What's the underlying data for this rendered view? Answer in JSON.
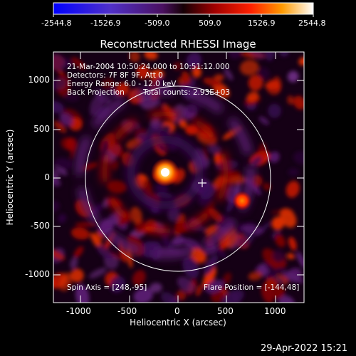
{
  "colorbar": {
    "ticks": [
      "-2544.8",
      "-1526.9",
      "-509.0",
      "509.0",
      "1526.9",
      "2544.8"
    ]
  },
  "title": "Reconstructed RHESSI Image",
  "annotations": {
    "time_range": "21-Mar-2004 10:50:24.000 to 10:51:12.000",
    "detectors": "Detectors: 7F 8F 9F, Att 0",
    "energy": "Energy Range: 6.0 - 12.0 keV",
    "method": "Back Projection",
    "counts": "Total counts: 2.93E+03",
    "spin_axis": "Spin Axis = [248,-95]",
    "flare_position": "Flare Position = [-144,48]"
  },
  "axes": {
    "x_label": "Heliocentric X (arcsec)",
    "y_label": "Heliocentric Y (arcsec)",
    "x_ticks": [
      "-1000",
      "-500",
      "0",
      "500",
      "1000"
    ],
    "y_ticks": [
      "1000",
      "500",
      "0",
      "-500",
      "-1000"
    ],
    "xlim": [
      -1270,
      1270
    ],
    "ylim": [
      -1270,
      1270
    ]
  },
  "footer": {
    "date": "29-Apr-2022 15:21"
  },
  "colors": {
    "background": "#000000",
    "text": "#ffffff"
  }
}
